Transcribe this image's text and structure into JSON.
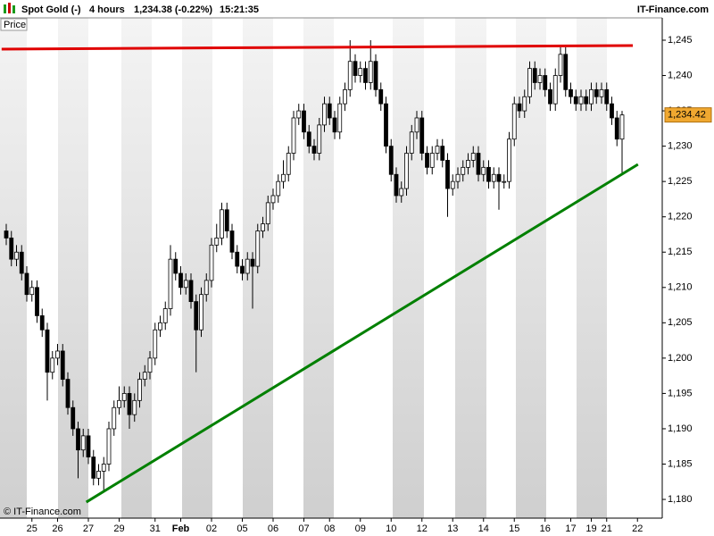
{
  "header": {
    "instrument": "Spot Gold (-)",
    "period": "4 hours",
    "quote": "1,234.38 (-0.22%)",
    "time": "15:21:35",
    "brand": "IT-Finance.com"
  },
  "panel_label": "Price",
  "copyright": "© IT-Finance.com",
  "chart_data": {
    "type": "candlestick",
    "categories": [
      null,
      null,
      null,
      null,
      null,
      "25",
      null,
      null,
      null,
      null,
      "26",
      null,
      null,
      null,
      null,
      null,
      "27",
      null,
      null,
      null,
      null,
      null,
      "29",
      null,
      null,
      null,
      null,
      null,
      null,
      "31",
      null,
      null,
      null,
      null,
      "Feb",
      null,
      null,
      null,
      null,
      null,
      "02",
      null,
      null,
      null,
      null,
      null,
      "05",
      null,
      null,
      null,
      null,
      null,
      "06",
      null,
      null,
      null,
      null,
      null,
      "07",
      null,
      null,
      null,
      null,
      "08",
      null,
      null,
      null,
      null,
      null,
      "09",
      null,
      null,
      null,
      null,
      null,
      "10",
      null,
      null,
      null,
      null,
      null,
      "12",
      null,
      null,
      null,
      null,
      null,
      "13",
      null,
      null,
      null,
      null,
      null,
      "14",
      null,
      null,
      null,
      null,
      null,
      "15",
      null,
      null,
      null,
      null,
      null,
      "16",
      null,
      null,
      null,
      null,
      "17",
      null,
      null,
      null,
      "19",
      null,
      null,
      "21",
      null,
      null,
      null,
      null,
      null,
      "22"
    ],
    "open": [
      1218,
      1217,
      1214,
      1215,
      1212,
      1209,
      1210,
      1206,
      1204,
      1198,
      1200,
      1201,
      1197,
      1193,
      1190,
      1187,
      1189,
      1186,
      1183,
      1184,
      1185,
      1190,
      1193,
      1194,
      1195,
      1192,
      1194,
      1197,
      1198,
      1200,
      1204,
      1205,
      1207,
      1214,
      1212,
      1210,
      1211,
      1208,
      1204,
      1209,
      1211,
      1216,
      1217,
      1221,
      1218,
      1215,
      1213,
      1212,
      1214,
      1213,
      1218,
      1219,
      1222,
      1223,
      1225,
      1226,
      1229,
      1234,
      1235,
      1232,
      1230,
      1229,
      1233,
      1236,
      1234,
      1232,
      1236,
      1238,
      1242,
      1240,
      1241,
      1239,
      1242,
      1238,
      1236,
      1230,
      1226,
      1223,
      1224,
      1229,
      1232,
      1234,
      1229,
      1227,
      1229,
      1230,
      1228,
      1224,
      1225,
      1226,
      1227,
      1228,
      1229,
      1226,
      1227,
      1225,
      1226,
      1225,
      1225,
      1231,
      1236,
      1235,
      1237,
      1241,
      1239,
      1240,
      1238,
      1236,
      1240,
      1243,
      1238,
      1237,
      1236,
      1237,
      1236,
      1238,
      1237,
      1238,
      1236,
      1234,
      1231,
      null,
      null,
      null
    ],
    "high": [
      1219,
      1218,
      1216,
      1216,
      1213,
      1211,
      1211,
      1207,
      1205,
      1201,
      1202,
      1202,
      1198,
      1194,
      1191,
      1190,
      1190,
      1187,
      1185,
      1186,
      1191,
      1194,
      1196,
      1196,
      1196,
      1195,
      1198,
      1199,
      1201,
      1205,
      1206,
      1208,
      1216,
      1215,
      1213,
      1212,
      1212,
      1209,
      1210,
      1212,
      1217,
      1219,
      1222,
      1222,
      1219,
      1216,
      1214,
      1215,
      1215,
      1219,
      1220,
      1223,
      1224,
      1226,
      1228,
      1230,
      1235,
      1236,
      1236,
      1233,
      1231,
      1234,
      1237,
      1237,
      1235,
      1237,
      1239,
      1245,
      1243,
      1242,
      1242,
      1245,
      1243,
      1239,
      1237,
      1231,
      1227,
      1225,
      1230,
      1233,
      1235,
      1235,
      1230,
      1230,
      1231,
      1231,
      1229,
      1226,
      1227,
      1228,
      1229,
      1230,
      1230,
      1228,
      1228,
      1227,
      1227,
      1226,
      1232,
      1237,
      1237,
      1238,
      1242,
      1242,
      1241,
      1241,
      1239,
      1241,
      1244,
      1244,
      1239,
      1238,
      1238,
      1238,
      1239,
      1239,
      1239,
      1239,
      1237,
      1235,
      1235,
      null,
      null,
      null
    ],
    "low": [
      1216,
      1213,
      1213,
      1211,
      1208,
      1208,
      1205,
      1203,
      1194,
      1197,
      1199,
      1196,
      1192,
      1189,
      1183,
      1186,
      1185,
      1182,
      1182,
      1181,
      1184,
      1189,
      1192,
      1193,
      1190,
      1191,
      1193,
      1196,
      1197,
      1199,
      1203,
      1204,
      1206,
      1211,
      1209,
      1209,
      1207,
      1198,
      1203,
      1208,
      1210,
      1215,
      1216,
      1217,
      1214,
      1212,
      1211,
      1211,
      1207,
      1212,
      1217,
      1218,
      1221,
      1222,
      1224,
      1225,
      1228,
      1233,
      1231,
      1229,
      1228,
      1228,
      1232,
      1233,
      1231,
      1231,
      1235,
      1237,
      1239,
      1239,
      1238,
      1238,
      1237,
      1235,
      1229,
      1225,
      1222,
      1222,
      1223,
      1228,
      1231,
      1228,
      1226,
      1226,
      1228,
      1227,
      1220,
      1223,
      1224,
      1225,
      1226,
      1227,
      1225,
      1225,
      1224,
      1224,
      1221,
      1224,
      1224,
      1230,
      1234,
      1234,
      1236,
      1238,
      1238,
      1237,
      1235,
      1235,
      1239,
      1237,
      1236,
      1235,
      1235,
      1235,
      1235,
      1236,
      1236,
      1235,
      1233,
      1230,
      1226,
      null,
      null,
      null
    ],
    "close": [
      1217,
      1214,
      1215,
      1212,
      1209,
      1210,
      1206,
      1204,
      1198,
      1200,
      1201,
      1197,
      1193,
      1190,
      1187,
      1189,
      1186,
      1183,
      1184,
      1185,
      1190,
      1193,
      1194,
      1195,
      1192,
      1194,
      1197,
      1198,
      1200,
      1204,
      1205,
      1207,
      1214,
      1212,
      1210,
      1211,
      1208,
      1204,
      1209,
      1211,
      1216,
      1217,
      1221,
      1218,
      1215,
      1213,
      1212,
      1214,
      1213,
      1218,
      1219,
      1222,
      1223,
      1225,
      1226,
      1229,
      1234,
      1235,
      1232,
      1230,
      1229,
      1233,
      1236,
      1234,
      1232,
      1236,
      1238,
      1242,
      1240,
      1241,
      1239,
      1242,
      1238,
      1236,
      1230,
      1226,
      1223,
      1224,
      1229,
      1232,
      1234,
      1229,
      1227,
      1229,
      1230,
      1228,
      1224,
      1225,
      1226,
      1227,
      1228,
      1229,
      1226,
      1227,
      1225,
      1226,
      1225,
      1225,
      1231,
      1236,
      1235,
      1237,
      1241,
      1239,
      1240,
      1238,
      1236,
      1240,
      1243,
      1238,
      1237,
      1236,
      1237,
      1236,
      1238,
      1237,
      1238,
      1236,
      1234,
      1231,
      1234.42,
      null,
      null,
      null
    ],
    "ylim": [
      1177.35,
      1248.16
    ],
    "yticks": [
      {
        "value": 1180,
        "label": "1,180"
      },
      {
        "value": 1185,
        "label": "1,185"
      },
      {
        "value": 1190,
        "label": "1,190"
      },
      {
        "value": 1195,
        "label": "1,195"
      },
      {
        "value": 1200,
        "label": "1,200"
      },
      {
        "value": 1205,
        "label": "1,205"
      },
      {
        "value": 1210,
        "label": "1,210"
      },
      {
        "value": 1215,
        "label": "1,215"
      },
      {
        "value": 1220,
        "label": "1,220"
      },
      {
        "value": 1225,
        "label": "1,225"
      },
      {
        "value": 1230,
        "label": "1,230"
      },
      {
        "value": 1235,
        "label": "1,235"
      },
      {
        "value": 1240,
        "label": "1,240"
      },
      {
        "value": 1245,
        "label": "1,245"
      }
    ],
    "last_value": 1234.42,
    "last_label": "1,234.42",
    "last_color": "#f0a830",
    "up_color": "#ffffff",
    "down_color": "#000000",
    "trendlines": [
      {
        "color": "#e00000",
        "x": [
          -0.9,
          122.1
        ],
        "y": [
          1243.74,
          1244.24
        ]
      },
      {
        "color": "#008000",
        "x": [
          15.6,
          123.1
        ],
        "y": [
          1179.62,
          1227.42
        ]
      }
    ]
  }
}
